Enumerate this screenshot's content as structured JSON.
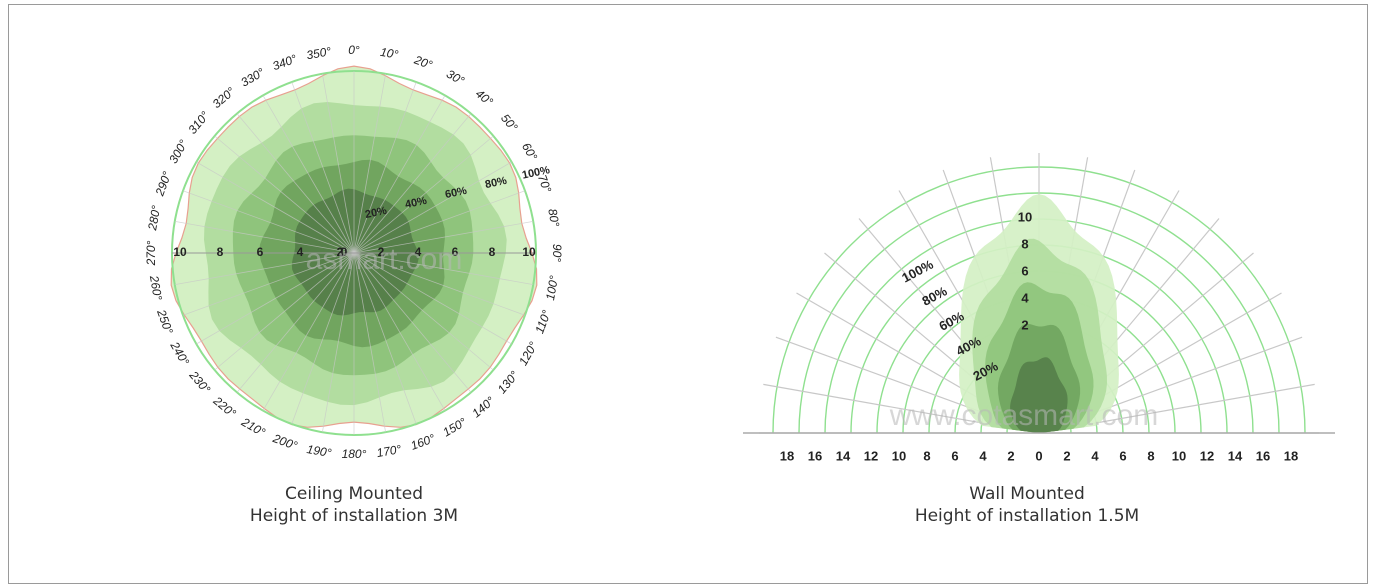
{
  "colors": {
    "zone_100": "#d4f0c4",
    "zone_80": "#b2dda0",
    "zone_60": "#8fc47c",
    "zone_40": "#71a55f",
    "zone_20": "#56804a",
    "ring": "#8fe08f",
    "spoke": "#c8c8c8",
    "outline": "#e8a090"
  },
  "ceiling": {
    "angle_labels": [
      "0°",
      "10°",
      "20°",
      "30°",
      "40°",
      "50°",
      "60°",
      "70°",
      "80°",
      "90°",
      "100°",
      "110°",
      "120°",
      "130°",
      "140°",
      "150°",
      "160°",
      "170°",
      "180°",
      "190°",
      "200°",
      "210°",
      "220°",
      "230°",
      "240°",
      "250°",
      "260°",
      "270°",
      "280°",
      "290°",
      "300°",
      "310°",
      "320°",
      "330°",
      "340°",
      "350°"
    ],
    "distance_labels_left": [
      "10",
      "8",
      "6",
      "4",
      "2"
    ],
    "distance_labels_right": [
      "0",
      "2",
      "4",
      "6",
      "8",
      "10"
    ],
    "percent_labels": [
      "20%",
      "40%",
      "60%",
      "80%",
      "100%"
    ],
    "watermark": "asmart.com",
    "caption_line1": "Ceiling Mounted",
    "caption_line2": "Height of installation 3M"
  },
  "wall": {
    "axis_labels": [
      "18",
      "16",
      "14",
      "12",
      "10",
      "8",
      "6",
      "4",
      "2",
      "0",
      "2",
      "4",
      "6",
      "8",
      "10",
      "12",
      "14",
      "16",
      "18"
    ],
    "distance_labels": [
      "10",
      "8",
      "6",
      "4",
      "2"
    ],
    "percent_labels": [
      "100%",
      "80%",
      "60%",
      "40%",
      "20%"
    ],
    "watermark": "www.cotasmart.com",
    "caption_line1": "Wall Mounted",
    "caption_line2": "Height of installation 1.5M"
  }
}
